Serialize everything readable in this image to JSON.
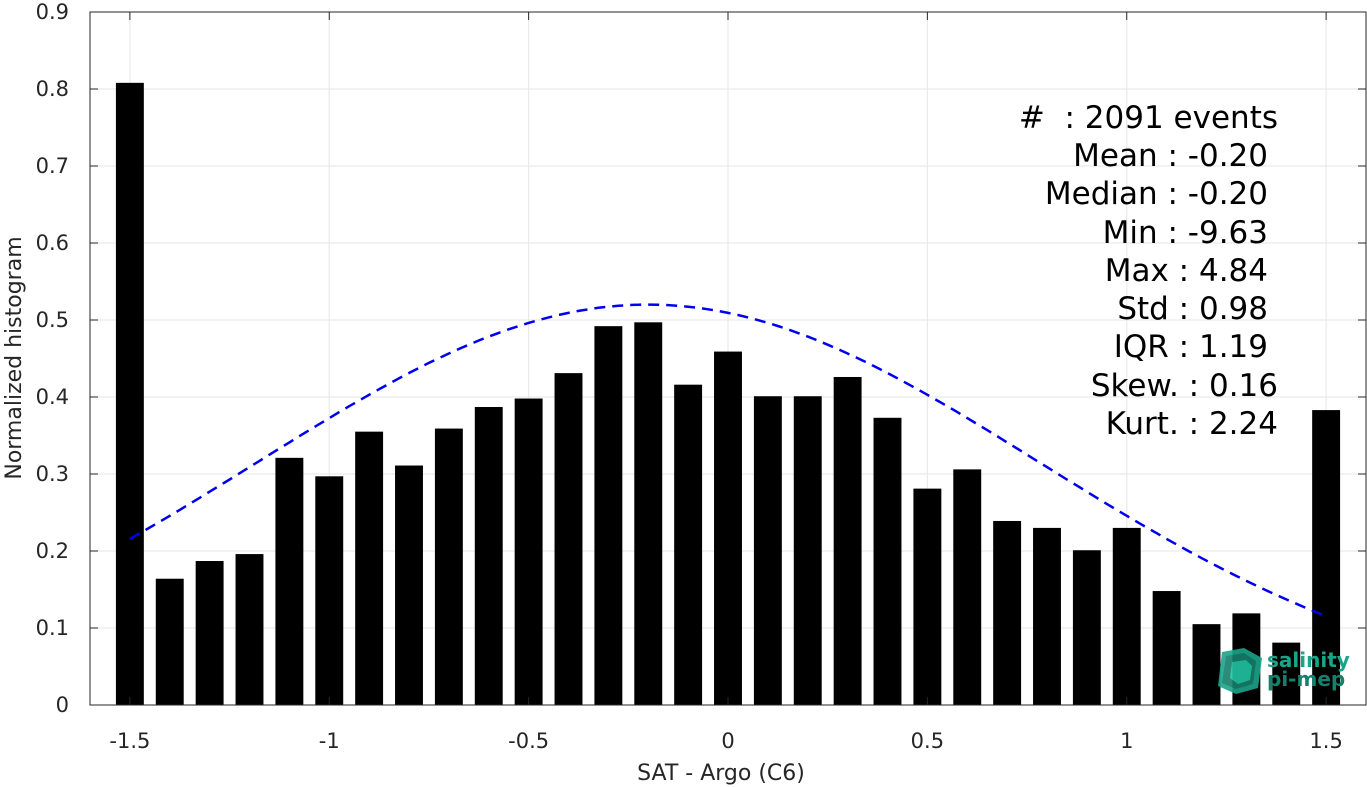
{
  "chart_data": {
    "type": "bar",
    "xlabel": "SAT - Argo (C6)",
    "ylabel": "Normalized histogram",
    "xlim": [
      -1.6,
      1.6
    ],
    "ylim": [
      0,
      0.9
    ],
    "grid": true,
    "xticks": [
      -1.5,
      -1,
      -0.5,
      0,
      0.5,
      1,
      1.5
    ],
    "xtick_labels": [
      "-1.5",
      "-1",
      "-0.5",
      "0",
      "0.5",
      "1",
      "1.5"
    ],
    "yticks": [
      0,
      0.1,
      0.2,
      0.3,
      0.4,
      0.5,
      0.6,
      0.7,
      0.8,
      0.9
    ],
    "ytick_labels": [
      "0",
      "0.1",
      "0.2",
      "0.3",
      "0.4",
      "0.5",
      "0.6",
      "0.7",
      "0.8",
      "0.9"
    ],
    "bar_width": 0.07,
    "bar_color": "#000000",
    "series": [
      {
        "x": [
          -1.5,
          -1.4,
          -1.3,
          -1.2,
          -1.1,
          -1.0,
          -0.9,
          -0.8,
          -0.7,
          -0.6,
          -0.5,
          -0.4,
          -0.3,
          -0.2,
          -0.1,
          0.0,
          0.1,
          0.2,
          0.3,
          0.4,
          0.5,
          0.6,
          0.7,
          0.8,
          0.9,
          1.0,
          1.1,
          1.2,
          1.3,
          1.4,
          1.5
        ],
        "values": [
          0.808,
          0.164,
          0.187,
          0.196,
          0.321,
          0.297,
          0.355,
          0.311,
          0.359,
          0.387,
          0.398,
          0.431,
          0.492,
          0.497,
          0.416,
          0.459,
          0.401,
          0.401,
          0.426,
          0.373,
          0.281,
          0.306,
          0.239,
          0.23,
          0.201,
          0.23,
          0.148,
          0.105,
          0.119,
          0.081,
          0.383
        ]
      }
    ],
    "fit_curve": {
      "style": "dashed",
      "color": "#0000ee",
      "mean": -0.2,
      "std": 0.98,
      "peak": 0.52,
      "x_range": [
        -1.5,
        1.5
      ]
    },
    "stats_lines": [
      "#  : 2091 events",
      "Mean : -0.20",
      "Median : -0.20",
      "Min : -9.63",
      "Max : 4.84",
      "Std : 0.98",
      "IQR : 1.19",
      "Skew. : 0.16",
      "Kurt. : 2.24"
    ],
    "logo": {
      "line1": "salinity",
      "line2": "pi-mep",
      "color": "#1aa58a"
    }
  }
}
